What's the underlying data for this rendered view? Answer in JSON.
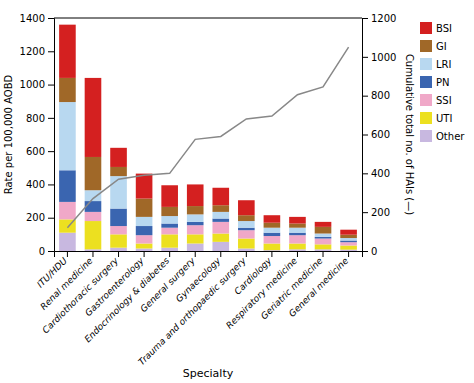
{
  "chart_data": {
    "type": "bar",
    "stacked": true,
    "categories": [
      "ITU/HDU",
      "Renal medicine",
      "Cardiothoracic surgery",
      "Gastroenterology",
      "Endocrinology & diabetes",
      "General surgery",
      "Gynaecology",
      "Trauma and orthopaedic surgery",
      "Cardiology",
      "Respiratory medicine",
      "Geriatric medicine",
      "General medicine"
    ],
    "xlabel": "Specialty",
    "ylabel": "Rate per 100,000 AOBD",
    "y2label": "Cumulative total no. of HAIs (—)",
    "ylim": [
      0,
      1400
    ],
    "yticks": [
      0,
      200,
      400,
      600,
      800,
      1000,
      1200,
      1400
    ],
    "y2lim": [
      0,
      1200
    ],
    "y2ticks": [
      0,
      200,
      400,
      600,
      800,
      1000,
      1200
    ],
    "grid": false,
    "legend": "right",
    "series": [
      {
        "name": "Other",
        "color": "#c8b8e0",
        "values": [
          110,
          10,
          20,
          15,
          20,
          45,
          55,
          15,
          5,
          10,
          10,
          8
        ]
      },
      {
        "name": "UTI",
        "color": "#ece020",
        "values": [
          80,
          170,
          80,
          30,
          80,
          55,
          50,
          60,
          40,
          35,
          30,
          25
        ]
      },
      {
        "name": "SSI",
        "color": "#f0a8c8",
        "values": [
          105,
          55,
          50,
          50,
          40,
          55,
          70,
          50,
          45,
          50,
          35,
          20
        ]
      },
      {
        "name": "PN",
        "color": "#3a65b0",
        "values": [
          190,
          65,
          105,
          55,
          25,
          20,
          20,
          15,
          20,
          15,
          10,
          10
        ]
      },
      {
        "name": "LRI",
        "color": "#b8d8f0",
        "values": [
          410,
          65,
          195,
          55,
          45,
          45,
          40,
          40,
          30,
          30,
          20,
          15
        ]
      },
      {
        "name": "GI",
        "color": "#a06828",
        "values": [
          145,
          200,
          55,
          110,
          55,
          50,
          40,
          35,
          30,
          25,
          40,
          20
        ]
      },
      {
        "name": "BSI",
        "color": "#d42020",
        "values": [
          320,
          475,
          115,
          150,
          130,
          130,
          105,
          90,
          45,
          40,
          30,
          30
        ]
      },
      {
        "type": "line",
        "axis": "y2",
        "color": "#888888",
        "values": [
          120,
          270,
          370,
          390,
          400,
          575,
          590,
          680,
          695,
          805,
          845,
          1050
        ]
      }
    ]
  }
}
